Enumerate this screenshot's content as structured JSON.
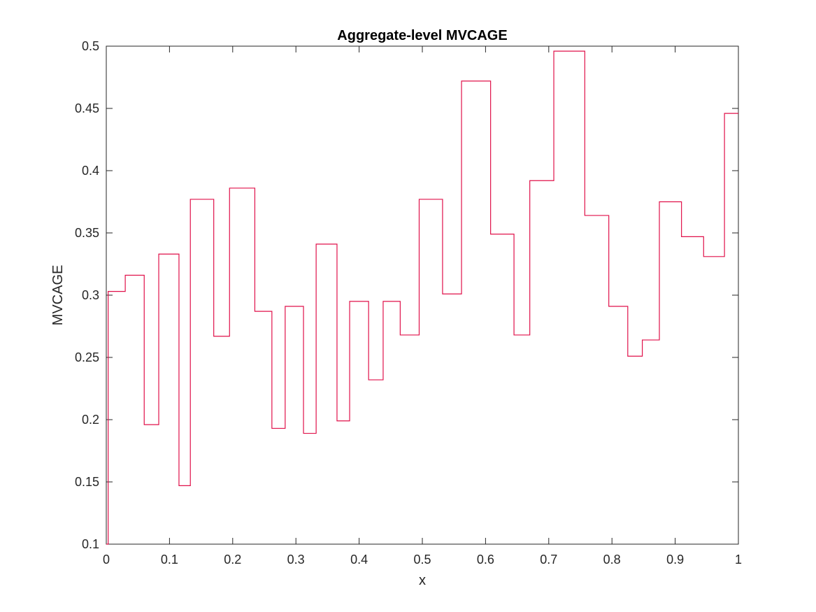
{
  "chart_data": {
    "type": "line",
    "title": "Aggregate-level MVCAGE",
    "xlabel": "x",
    "ylabel": "MVCAGE",
    "xlim": [
      0,
      1
    ],
    "ylim": [
      0.1,
      0.5
    ],
    "xticks": [
      "0",
      "0.1",
      "0.2",
      "0.3",
      "0.4",
      "0.5",
      "0.6",
      "0.7",
      "0.8",
      "0.9",
      "1"
    ],
    "xtick_values": [
      0,
      0.1,
      0.2,
      0.3,
      0.4,
      0.5,
      0.6,
      0.7,
      0.8,
      0.9,
      1
    ],
    "yticks": [
      "0.1",
      "0.15",
      "0.2",
      "0.25",
      "0.3",
      "0.35",
      "0.4",
      "0.45",
      "0.5"
    ],
    "ytick_values": [
      0.1,
      0.15,
      0.2,
      0.25,
      0.3,
      0.35,
      0.4,
      0.45,
      0.5
    ],
    "grid": false,
    "box": true,
    "step": "post",
    "series": [
      {
        "color": "#e0114a",
        "x": [
          0,
          0.003,
          0.03,
          0.06,
          0.083,
          0.115,
          0.133,
          0.17,
          0.195,
          0.235,
          0.262,
          0.283,
          0.312,
          0.332,
          0.365,
          0.385,
          0.415,
          0.438,
          0.465,
          0.495,
          0.532,
          0.562,
          0.608,
          0.645,
          0.67,
          0.708,
          0.757,
          0.795,
          0.825,
          0.848,
          0.875,
          0.91,
          0.945,
          0.978,
          1.0
        ],
        "y": [
          0.1,
          0.303,
          0.316,
          0.196,
          0.333,
          0.147,
          0.377,
          0.267,
          0.386,
          0.287,
          0.193,
          0.291,
          0.189,
          0.341,
          0.199,
          0.295,
          0.232,
          0.295,
          0.268,
          0.377,
          0.301,
          0.472,
          0.349,
          0.268,
          0.392,
          0.496,
          0.364,
          0.291,
          0.251,
          0.264,
          0.375,
          0.347,
          0.331,
          0.446,
          0.446
        ]
      }
    ]
  }
}
